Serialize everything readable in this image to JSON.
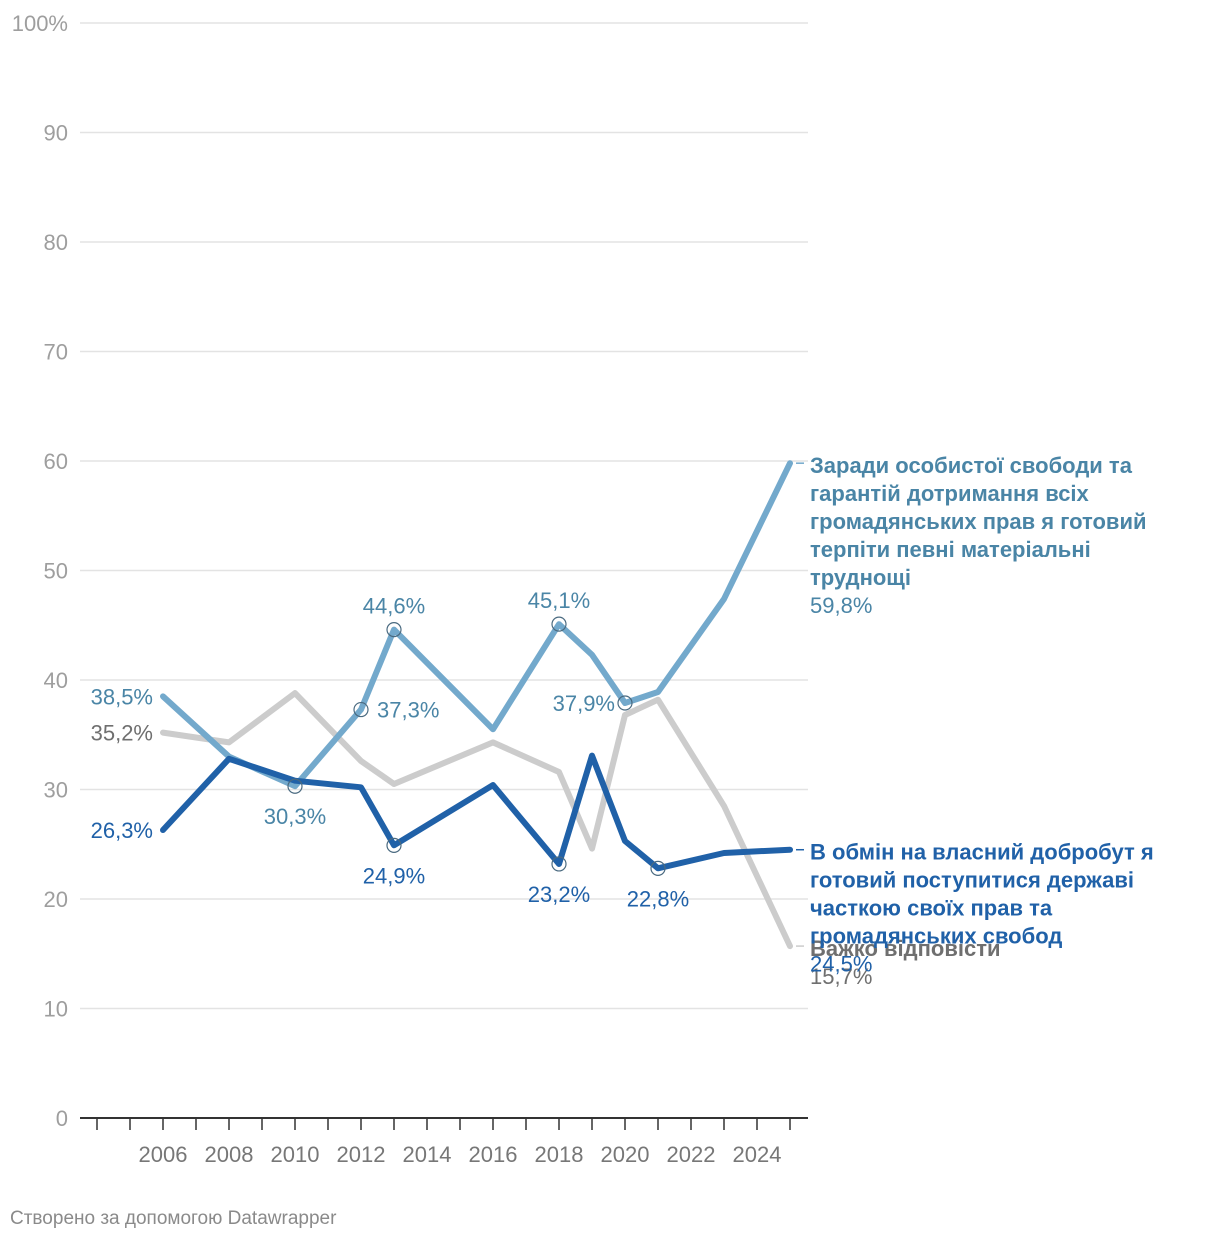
{
  "chart_data": {
    "type": "line",
    "ylim": [
      0,
      100
    ],
    "yticks": [
      {
        "value": 0,
        "label": "0"
      },
      {
        "value": 10,
        "label": "10"
      },
      {
        "value": 20,
        "label": "20"
      },
      {
        "value": 30,
        "label": "30"
      },
      {
        "value": 40,
        "label": "40"
      },
      {
        "value": 50,
        "label": "50"
      },
      {
        "value": 60,
        "label": "60"
      },
      {
        "value": 70,
        "label": "70"
      },
      {
        "value": 80,
        "label": "80"
      },
      {
        "value": 90,
        "label": "90"
      },
      {
        "value": 100,
        "label": "100%"
      }
    ],
    "xlim": [
      2003.5,
      2025.5
    ],
    "xticks": [
      2006,
      2008,
      2010,
      2012,
      2014,
      2016,
      2018,
      2020,
      2022,
      2024
    ],
    "x": [
      2006,
      2008,
      2010,
      2012,
      2013,
      2016,
      2018,
      2019,
      2020,
      2021,
      2023,
      2025
    ],
    "series": [
      {
        "name": "Важко відповісти",
        "color": "#cccccc",
        "label_color": "#6f6f6f",
        "values": [
          35.2,
          34.3,
          38.8,
          32.6,
          30.5,
          34.3,
          31.6,
          24.6,
          36.8,
          38.2,
          28.5,
          15.7
        ],
        "end_value_label": "15,7%",
        "labels": [
          {
            "index": 0,
            "text": "35,2%",
            "pos": "left"
          }
        ]
      },
      {
        "name": "Заради особистої свободи та гарантій дотримання всіх громадянських прав я готовий терпіти певні матеріальні труднощі",
        "color": "#73a9cc",
        "label_color": "#4a85a6",
        "values": [
          38.5,
          33.0,
          30.3,
          37.3,
          44.6,
          35.5,
          45.1,
          42.3,
          37.9,
          38.9,
          47.4,
          59.8
        ],
        "end_value_label": "59,8%",
        "labels": [
          {
            "index": 0,
            "text": "38,5%",
            "pos": "left"
          },
          {
            "index": 2,
            "text": "30,3%",
            "pos": "below"
          },
          {
            "index": 3,
            "text": "37,3%",
            "pos": "right"
          },
          {
            "index": 4,
            "text": "44,6%",
            "pos": "above"
          },
          {
            "index": 6,
            "text": "45,1%",
            "pos": "above"
          },
          {
            "index": 8,
            "text": "37,9%",
            "pos": "left"
          }
        ]
      },
      {
        "name": "В обмін на власний добробут я готовий поступитися державі часткою своїх прав та громадянських свобод",
        "color": "#2061a8",
        "label_color": "#2061a8",
        "values": [
          26.3,
          32.8,
          30.8,
          30.2,
          24.9,
          30.4,
          23.2,
          33.1,
          25.3,
          22.8,
          24.2,
          24.5
        ],
        "end_value_label": "24,5%",
        "labels": [
          {
            "index": 0,
            "text": "26,3%",
            "pos": "left"
          },
          {
            "index": 4,
            "text": "24,9%",
            "pos": "below"
          },
          {
            "index": 6,
            "text": "23,2%",
            "pos": "below"
          },
          {
            "index": 9,
            "text": "22,8%",
            "pos": "below"
          }
        ]
      }
    ],
    "end_label_lines": [
      [
        "Важко відповісти"
      ],
      [
        "Заради особистої свободи та",
        "гарантій дотримання всіх",
        "громадянських прав я готовий",
        "терпіти певні матеріальні",
        "труднощі"
      ],
      [
        "В обмін на власний добробут я",
        "готовий поступитися державі",
        "часткою своїх прав та",
        "громадянських свобод"
      ]
    ]
  },
  "footer": "Створено за допомогою Datawrapper"
}
